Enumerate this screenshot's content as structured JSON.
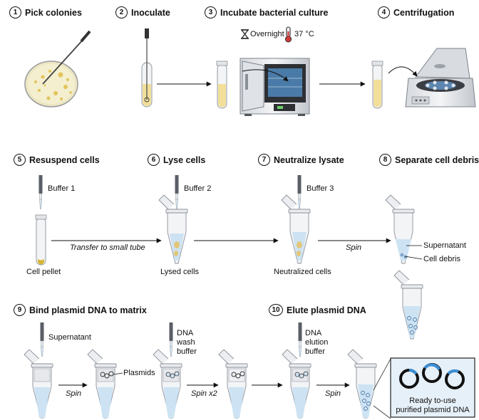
{
  "steps": [
    {
      "num": "1",
      "title": "Pick colonies"
    },
    {
      "num": "2",
      "title": "Inoculate"
    },
    {
      "num": "3",
      "title": "Incubate bacterial culture"
    },
    {
      "num": "4",
      "title": "Centrifugation"
    },
    {
      "num": "5",
      "title": "Resuspend cells"
    },
    {
      "num": "6",
      "title": "Lyse cells"
    },
    {
      "num": "7",
      "title": "Neutralize lysate"
    },
    {
      "num": "8",
      "title": "Separate cell debris"
    },
    {
      "num": "9",
      "title": "Bind plasmid DNA to matrix"
    },
    {
      "num": "10",
      "title": "Elute plasmid DNA"
    }
  ],
  "incubation": {
    "time": "Overnight",
    "temperature": "37 °C"
  },
  "labels": {
    "buffer1": "Buffer 1",
    "buffer2": "Buffer 2",
    "buffer3": "Buffer 3",
    "cell_pellet": "Cell pellet",
    "lysed_cells": "Lysed cells",
    "neutralized_cells": "Neutralized cells",
    "supernatant": "Supernatant",
    "cell_debris": "Cell debris",
    "supernatant_row3": "Supernatant",
    "plasmids": "Plasmids",
    "wash_buffer": [
      "DNA",
      "wash",
      "buffer"
    ],
    "elution_buffer": [
      "DNA",
      "elution",
      "buffer"
    ],
    "ready": [
      "Ready to-use",
      "purified plasmid DNA"
    ]
  },
  "arrow_labels": {
    "transfer": "Transfer to small tube",
    "spin_row2": "Spin",
    "spin_row3a": "Spin",
    "spin_x2": "Spin x2",
    "spin_row3b": "Spin"
  }
}
